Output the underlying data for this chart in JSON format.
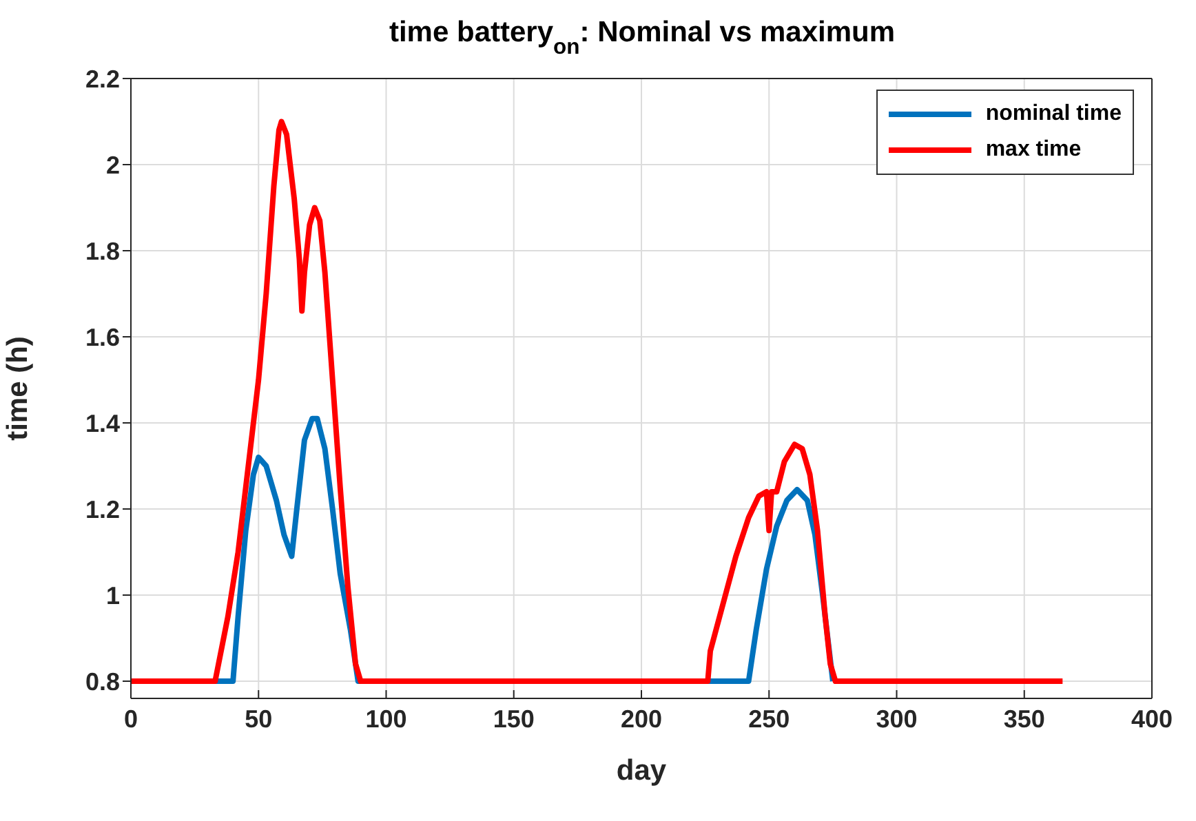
{
  "chart_data": {
    "type": "line",
    "title": "time battery$_{on}$: Nominal vs maximum",
    "xlabel": "day",
    "ylabel": "time (h)",
    "xlim": [
      0,
      400
    ],
    "xticks": [
      0,
      50,
      100,
      150,
      200,
      250,
      300,
      350,
      400
    ],
    "ylim": [
      0.76,
      2.2
    ],
    "yticks": [
      0.8,
      1,
      1.2,
      1.4,
      1.6,
      1.8,
      2,
      2.2
    ],
    "grid": true,
    "legend": "top right",
    "line_style": "solid",
    "marker": "none",
    "series": [
      {
        "name": "nominal time",
        "color": "#0072bd",
        "x": [
          0,
          40,
          42,
          45,
          48,
          50,
          53,
          57,
          60,
          63,
          65,
          68,
          71,
          73,
          76,
          79,
          82,
          86,
          89,
          242,
          245,
          249,
          253,
          257,
          261,
          265,
          268,
          271,
          273,
          275
        ],
        "values": [
          0.8,
          0.8,
          0.95,
          1.15,
          1.28,
          1.32,
          1.3,
          1.22,
          1.14,
          1.09,
          1.2,
          1.36,
          1.41,
          1.41,
          1.34,
          1.2,
          1.05,
          0.92,
          0.8,
          0.8,
          0.92,
          1.06,
          1.16,
          1.22,
          1.245,
          1.22,
          1.14,
          1.0,
          0.9,
          0.8
        ]
      },
      {
        "name": "max time",
        "color": "#ff0000",
        "x": [
          0,
          33,
          38,
          42,
          46,
          50,
          53,
          56,
          58,
          59,
          61,
          64,
          66,
          67,
          68,
          70,
          72,
          74,
          76,
          79,
          82,
          85,
          88,
          90,
          226,
          227,
          232,
          237,
          242,
          246,
          249,
          250,
          251,
          253,
          256,
          260,
          263,
          266,
          269,
          272,
          274,
          276,
          365
        ],
        "values": [
          0.8,
          0.8,
          0.95,
          1.1,
          1.3,
          1.5,
          1.7,
          1.95,
          2.08,
          2.1,
          2.07,
          1.92,
          1.78,
          1.66,
          1.75,
          1.86,
          1.9,
          1.87,
          1.75,
          1.5,
          1.25,
          1.02,
          0.84,
          0.8,
          0.8,
          0.87,
          0.98,
          1.09,
          1.18,
          1.23,
          1.24,
          1.15,
          1.24,
          1.24,
          1.31,
          1.35,
          1.34,
          1.28,
          1.15,
          0.95,
          0.84,
          0.8,
          0.8
        ]
      }
    ]
  }
}
